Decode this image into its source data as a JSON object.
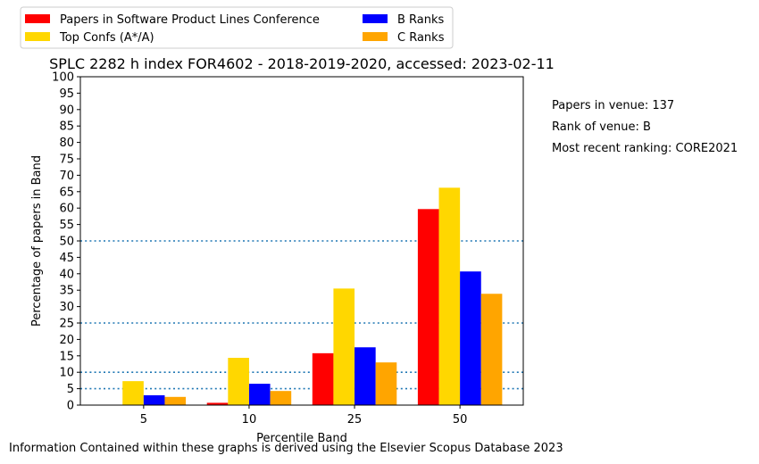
{
  "chart_data": {
    "type": "bar",
    "title": "SPLC 2282 h index FOR4602 - 2018-2019-2020, accessed: 2023-02-11",
    "xlabel": "Percentile Band",
    "ylabel": "Percentage of papers in Band",
    "categories": [
      "5",
      "10",
      "25",
      "50"
    ],
    "ylim": [
      0,
      100
    ],
    "yticks": [
      "0",
      "5",
      "10",
      "15",
      "20",
      "25",
      "30",
      "35",
      "40",
      "45",
      "50",
      "55",
      "60",
      "65",
      "70",
      "75",
      "80",
      "85",
      "90",
      "95",
      "100"
    ],
    "reference_lines": [
      5,
      10,
      25,
      50
    ],
    "reference_line_color": "#1f77b4",
    "legend_position": "top-left, above plot, two columns",
    "series": [
      {
        "name": "Papers in Software Product Lines Conference",
        "color": "#ff0000",
        "values": [
          0,
          0.7,
          15.8,
          59.7
        ]
      },
      {
        "name": "Top Confs (A*/A)",
        "color": "#ffd700",
        "values": [
          7.3,
          14.4,
          35.5,
          66.2
        ]
      },
      {
        "name": "B Ranks",
        "color": "#0000ff",
        "values": [
          3.0,
          6.5,
          17.6,
          40.7
        ]
      },
      {
        "name": "C Ranks",
        "color": "#ffa500",
        "values": [
          2.5,
          4.3,
          13.0,
          33.9
        ]
      }
    ]
  },
  "side_notes": {
    "papers": "Papers in venue: 137",
    "rank": "Rank of venue: B",
    "ranking": "Most recent ranking: CORE2021"
  },
  "footer": "Information Contained within these graphs is derived using the Elsevier Scopus Database 2023"
}
